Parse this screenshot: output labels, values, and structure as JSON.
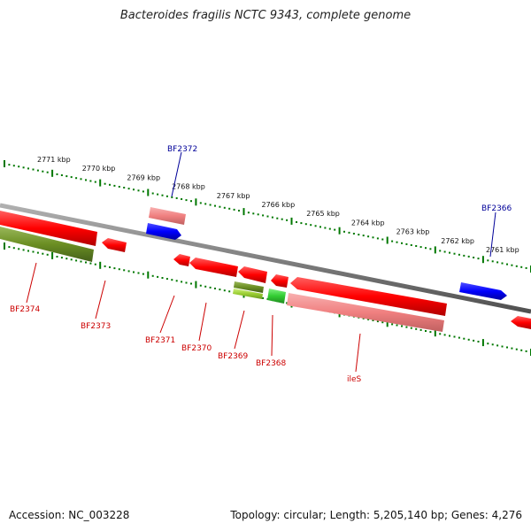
{
  "title": "Bacteroides fragilis NCTC 9343, complete genome",
  "footer": {
    "accession": "Accession: NC_003228",
    "topology": "Topology: circular; Length: 5,205,140 bp; Genes: 4,276"
  },
  "colors": {
    "backbone": "#808080",
    "gene_red": "#ff0000",
    "gene_pink": "#f08080",
    "gene_blue": "#0000ff",
    "gene_olive": "#6b8e23",
    "gene_lime": "#9acd32",
    "gene_green": "#32cd32",
    "tick": "#007700",
    "label_red": "#cc0000",
    "label_blue": "#000099"
  },
  "kbp_labels": [
    "2771 kbp",
    "2770 kbp",
    "2769 kbp",
    "2768 kbp",
    "2767 kbp",
    "2766 kbp",
    "2765 kbp",
    "2764 kbp",
    "2763 kbp",
    "2762 kbp",
    "2761 kbp"
  ],
  "genes_plus": [
    {
      "name": "BF2372",
      "color": "gene_blue"
    },
    {
      "name": "BF2366",
      "color": "gene_blue"
    }
  ],
  "genes_minus": [
    {
      "name": "BF2374",
      "color": "gene_red"
    },
    {
      "name": "BF2373",
      "color": "gene_red"
    },
    {
      "name": "BF2371",
      "color": "gene_red"
    },
    {
      "name": "BF2370",
      "color": "gene_red"
    },
    {
      "name": "BF2369",
      "color": "gene_lime"
    },
    {
      "name": "BF2368",
      "color": "gene_green"
    },
    {
      "name": "ileS",
      "color": "gene_red"
    }
  ]
}
